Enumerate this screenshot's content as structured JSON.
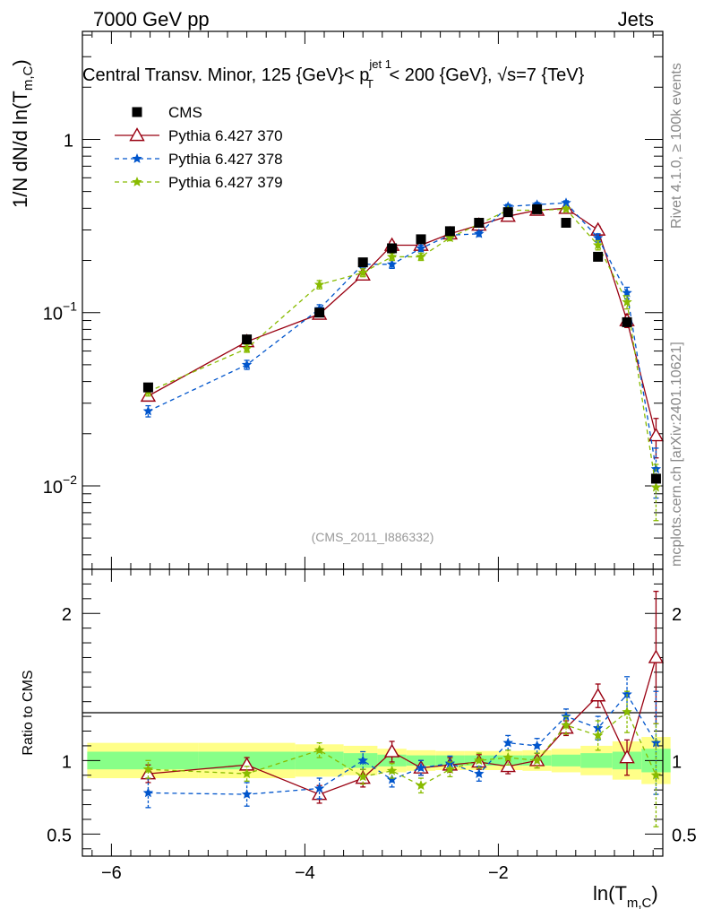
{
  "header": {
    "left": "7000 GeV pp",
    "right": "Jets"
  },
  "side_labels": {
    "rivet": "Rivet 4.1.0, ≥ 100k events",
    "mcplots": "mcplots.cern.ch [arXiv:2401.10621]"
  },
  "chart_data": [
    {
      "type": "scatter",
      "title_parts": {
        "pre": "Central Transv. Minor, 125 {GeV}< p",
        "sup": "jet 1",
        "sub": "T",
        "post": " < 200 {GeV}, √s=7 {TeV}"
      },
      "ylabel": "1/N    dN/d ln(T",
      "ylabel_sub": "m,C",
      "ylabel_post": ")",
      "yscale": "log",
      "xlim": [
        -6.3,
        -0.3
      ],
      "ylim": [
        0.0033,
        4.2
      ],
      "y_tick_labels": [
        {
          "value": 1,
          "base": "1",
          "exp": ""
        },
        {
          "value": 0.1,
          "base": "10",
          "exp": "−1"
        },
        {
          "value": 0.01,
          "base": "10",
          "exp": "−2"
        }
      ],
      "watermark": "(CMS_2011_I886332)",
      "series": [
        {
          "name": "CMS",
          "color": "#000000",
          "marker": "square",
          "line": "none",
          "x": [
            -5.62,
            -4.6,
            -3.85,
            -3.4,
            -3.1,
            -2.8,
            -2.5,
            -2.2,
            -1.9,
            -1.6,
            -1.3,
            -0.97,
            -0.67,
            -0.37
          ],
          "y": [
            0.037,
            0.07,
            0.1,
            0.195,
            0.235,
            0.265,
            0.295,
            0.33,
            0.38,
            0.395,
            0.33,
            0.21,
            0.088,
            0.011
          ]
        },
        {
          "name": "Pythia 6.427 370",
          "color": "#990011",
          "marker": "triangle",
          "line": "solid",
          "x": [
            -5.62,
            -4.6,
            -3.85,
            -3.4,
            -3.1,
            -2.8,
            -2.5,
            -2.2,
            -1.9,
            -1.6,
            -1.3,
            -0.97,
            -0.67,
            -0.37
          ],
          "y": [
            0.033,
            0.068,
            0.098,
            0.165,
            0.245,
            0.245,
            0.285,
            0.32,
            0.36,
            0.39,
            0.4,
            0.3,
            0.09,
            0.0195
          ],
          "yerr": [
            0.002,
            0.002,
            0.005,
            0.008,
            0.012,
            0.01,
            0.01,
            0.01,
            0.01,
            0.01,
            0.01,
            0.015,
            0.008,
            0.005
          ]
        },
        {
          "name": "Pythia 6.427 378",
          "color": "#0055cc",
          "marker": "star",
          "line": "dashed",
          "x": [
            -5.62,
            -4.6,
            -3.85,
            -3.4,
            -3.1,
            -2.8,
            -2.5,
            -2.2,
            -1.9,
            -1.6,
            -1.3,
            -0.97,
            -0.67,
            -0.37
          ],
          "y": [
            0.027,
            0.05,
            0.105,
            0.19,
            0.19,
            0.235,
            0.28,
            0.285,
            0.41,
            0.42,
            0.43,
            0.27,
            0.13,
            0.0125
          ],
          "yerr": [
            0.002,
            0.003,
            0.006,
            0.01,
            0.01,
            0.01,
            0.01,
            0.01,
            0.012,
            0.012,
            0.012,
            0.015,
            0.01,
            0.004
          ]
        },
        {
          "name": "Pythia 6.427 379",
          "color": "#88bb00",
          "marker": "star",
          "line": "dashed",
          "x": [
            -5.62,
            -4.6,
            -3.85,
            -3.4,
            -3.1,
            -2.8,
            -2.5,
            -2.2,
            -1.9,
            -1.6,
            -1.3,
            -0.97,
            -0.67,
            -0.37
          ],
          "y": [
            0.035,
            0.062,
            0.145,
            0.17,
            0.21,
            0.21,
            0.27,
            0.325,
            0.39,
            0.39,
            0.395,
            0.245,
            0.115,
            0.0098
          ],
          "yerr": [
            0.002,
            0.003,
            0.008,
            0.009,
            0.01,
            0.01,
            0.01,
            0.01,
            0.012,
            0.012,
            0.012,
            0.015,
            0.01,
            0.0035
          ]
        }
      ]
    },
    {
      "type": "scatter",
      "ylabel": "Ratio to CMS",
      "xlabel": "ln(T",
      "xlabel_sub": "m,C",
      "xlabel_post": ")",
      "xlim": [
        -6.3,
        -0.3
      ],
      "ylim": [
        0.35,
        2.3
      ],
      "x_tick_labels": [
        {
          "value": -6,
          "label": "−6"
        },
        {
          "value": -4,
          "label": "−4"
        },
        {
          "value": -2,
          "label": "−2"
        }
      ],
      "y_tick_labels": [
        {
          "value": 2,
          "label": "2"
        },
        {
          "value": 1,
          "label": "1"
        },
        {
          "value": 0.5,
          "label": "0.5"
        }
      ],
      "band_edges": [
        -6.25,
        -5.1,
        -4.1,
        -3.6,
        -3.25,
        -2.95,
        -2.65,
        -2.35,
        -2.05,
        -1.75,
        -1.45,
        -1.15,
        -0.82,
        -0.52,
        -0.22
      ],
      "band_inner": [
        0.06,
        0.06,
        0.06,
        0.05,
        0.04,
        0.035,
        0.035,
        0.035,
        0.035,
        0.035,
        0.04,
        0.05,
        0.06,
        0.08
      ],
      "band_outer": [
        0.12,
        0.12,
        0.11,
        0.1,
        0.08,
        0.07,
        0.065,
        0.065,
        0.065,
        0.07,
        0.08,
        0.1,
        0.13,
        0.16
      ],
      "series": [
        {
          "name": "Pythia 6.427 370",
          "color": "#990011",
          "marker": "triangle",
          "line": "solid",
          "x": [
            -5.62,
            -4.6,
            -3.85,
            -3.4,
            -3.1,
            -2.8,
            -2.5,
            -2.2,
            -1.9,
            -1.6,
            -1.3,
            -0.97,
            -0.67,
            -0.37
          ],
          "y": [
            0.91,
            0.97,
            0.77,
            0.88,
            1.06,
            0.95,
            0.97,
            0.99,
            0.96,
            1.0,
            1.22,
            1.44,
            1.02,
            1.7
          ],
          "yerr": [
            0.06,
            0.05,
            0.06,
            0.06,
            0.07,
            0.05,
            0.05,
            0.05,
            0.05,
            0.05,
            0.05,
            0.08,
            0.12,
            0.45
          ]
        },
        {
          "name": "Pythia 6.427 378",
          "color": "#0055cc",
          "marker": "star",
          "line": "dashed",
          "x": [
            -5.62,
            -4.6,
            -3.85,
            -3.4,
            -3.1,
            -2.8,
            -2.5,
            -2.2,
            -1.9,
            -1.6,
            -1.3,
            -0.97,
            -0.67,
            -0.37
          ],
          "y": [
            0.78,
            0.77,
            0.81,
            1.0,
            0.87,
            0.95,
            0.98,
            0.91,
            1.12,
            1.1,
            1.3,
            1.22,
            1.45,
            1.12
          ],
          "yerr": [
            0.1,
            0.08,
            0.07,
            0.06,
            0.05,
            0.05,
            0.05,
            0.05,
            0.05,
            0.05,
            0.05,
            0.08,
            0.12,
            0.35
          ]
        },
        {
          "name": "Pythia 6.427 379",
          "color": "#88bb00",
          "marker": "star",
          "line": "dashed",
          "x": [
            -5.62,
            -4.6,
            -3.85,
            -3.4,
            -3.1,
            -2.8,
            -2.5,
            -2.2,
            -1.9,
            -1.6,
            -1.3,
            -0.97,
            -0.67,
            -0.37
          ],
          "y": [
            0.94,
            0.91,
            1.07,
            0.89,
            0.93,
            0.83,
            0.94,
            1.0,
            1.02,
            1.0,
            1.24,
            1.17,
            1.33,
            0.9
          ],
          "yerr": [
            0.06,
            0.05,
            0.05,
            0.05,
            0.05,
            0.05,
            0.05,
            0.05,
            0.05,
            0.05,
            0.06,
            0.1,
            0.14,
            0.35
          ]
        }
      ]
    }
  ]
}
